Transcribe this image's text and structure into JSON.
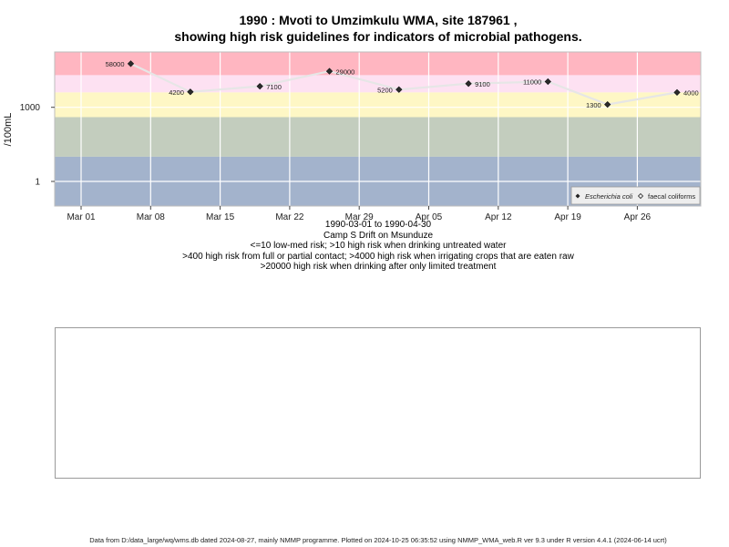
{
  "title_line1": "1990 : Mvoti to Umzimkulu WMA, site 187961 ,",
  "title_line2": "showing high risk guidelines for indicators of microbial pathogens.",
  "chart_data": {
    "type": "scatter",
    "x_ticks": [
      "Mar 01",
      "Mar 08",
      "Mar 15",
      "Mar 22",
      "Mar 29",
      "Apr 05",
      "Apr 12",
      "Apr 19",
      "Apr 26"
    ],
    "y_ticks": [
      "1",
      "1000"
    ],
    "ylabel": "/100mL",
    "y_scale": "log",
    "legend": {
      "placement": "bottom-right",
      "entries": [
        {
          "label": "Escherichia coli",
          "marker": "diamond-filled"
        },
        {
          "label": "faecal coliforms",
          "marker": "diamond-open"
        }
      ]
    },
    "bands": [
      {
        "from": 20000,
        "color": "#ffb6c1"
      },
      {
        "from": 4000,
        "to": 20000,
        "color": "#fde1f2"
      },
      {
        "from": 400,
        "to": 4000,
        "color": "#fef7c5"
      },
      {
        "from": 10,
        "to": 400,
        "color": "#c3cdbe"
      },
      {
        "to": 10,
        "color": "#a3b3cc"
      }
    ],
    "series": [
      {
        "name": "Escherichia coli",
        "points": [
          {
            "date": "1990-03-06",
            "value": 58000,
            "label": "58000"
          },
          {
            "date": "1990-03-12",
            "value": 4200,
            "label": "4200"
          },
          {
            "date": "1990-03-19",
            "value": 7100,
            "label": "7100"
          },
          {
            "date": "1990-03-26",
            "value": 29000,
            "label": "29000"
          },
          {
            "date": "1990-04-02",
            "value": 5200,
            "label": "5200"
          },
          {
            "date": "1990-04-09",
            "value": 9100,
            "label": "9100"
          },
          {
            "date": "1990-04-17",
            "value": 11000,
            "label": "11000"
          },
          {
            "date": "1990-04-23",
            "value": 1300,
            "label": "1300"
          },
          {
            "date": "1990-04-30",
            "value": 4000,
            "label": "4000"
          }
        ]
      }
    ]
  },
  "captions": [
    "1990-03-01 to 1990-04-30",
    "Camp S Drift on Msunduze",
    "<=10 low-med risk; >10 high risk when drinking untreated water",
    ">400 high risk from full or partial contact; >4000 high risk when irrigating crops that are eaten raw",
    ">20000 high risk when drinking after only limited treatment"
  ],
  "footer": "Data from D:/data_large/wq/wms.db dated 2024-08-27, mainly NMMP programme. Plotted on 2024-10-25 06:35:52 using NMMP_WMA_web.R ver 9.3 under R version 4.4.1 (2024-06-14 ucrt)"
}
